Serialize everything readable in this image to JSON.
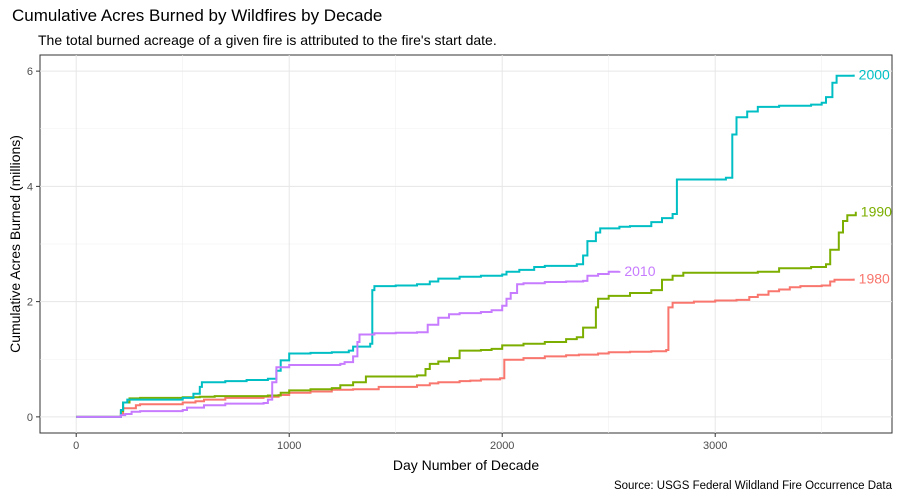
{
  "chart_data": {
    "type": "line",
    "title": "Cumulative Acres Burned by Wildfires by Decade",
    "subtitle": "The total burned acreage of a given fire is attributed to the fire's start date.",
    "caption": "Source: USGS Federal Wildland Fire Occurrence Data",
    "xlabel": "Day Number of Decade",
    "ylabel": "Cumulative Acres Burned (millions)",
    "xlim": [
      -170,
      3830
    ],
    "ylim": [
      -0.28,
      6.28
    ],
    "x_ticks": [
      0,
      1000,
      2000,
      3000
    ],
    "x_tick_labels": [
      "0",
      "1000",
      "2000",
      "3000"
    ],
    "y_ticks": [
      0,
      2,
      4,
      6
    ],
    "y_tick_labels": [
      "0",
      "2",
      "4",
      "6"
    ],
    "grid": true,
    "legend": "direct labels at line ends",
    "series": [
      {
        "name": "1980",
        "color": "#F8766D",
        "points": [
          [
            0,
            0
          ],
          [
            200,
            0
          ],
          [
            210,
            0.05
          ],
          [
            220,
            0.15
          ],
          [
            280,
            0.2
          ],
          [
            300,
            0.22
          ],
          [
            500,
            0.25
          ],
          [
            560,
            0.27
          ],
          [
            600,
            0.3
          ],
          [
            700,
            0.33
          ],
          [
            880,
            0.35
          ],
          [
            950,
            0.38
          ],
          [
            1000,
            0.42
          ],
          [
            1100,
            0.44
          ],
          [
            1200,
            0.47
          ],
          [
            1300,
            0.48
          ],
          [
            1420,
            0.52
          ],
          [
            1600,
            0.55
          ],
          [
            1660,
            0.58
          ],
          [
            1700,
            0.6
          ],
          [
            1800,
            0.62
          ],
          [
            1850,
            0.63
          ],
          [
            1900,
            0.65
          ],
          [
            1990,
            0.67
          ],
          [
            2010,
            0.99
          ],
          [
            2100,
            1.02
          ],
          [
            2200,
            1.05
          ],
          [
            2300,
            1.07
          ],
          [
            2360,
            1.08
          ],
          [
            2450,
            1.1
          ],
          [
            2500,
            1.12
          ],
          [
            2600,
            1.13
          ],
          [
            2700,
            1.14
          ],
          [
            2770,
            1.16
          ],
          [
            2780,
            1.9
          ],
          [
            2800,
            1.98
          ],
          [
            2900,
            2.0
          ],
          [
            3000,
            2.02
          ],
          [
            3100,
            2.03
          ],
          [
            3160,
            2.08
          ],
          [
            3200,
            2.12
          ],
          [
            3250,
            2.18
          ],
          [
            3300,
            2.21
          ],
          [
            3350,
            2.25
          ],
          [
            3400,
            2.27
          ],
          [
            3500,
            2.28
          ],
          [
            3540,
            2.35
          ],
          [
            3560,
            2.38
          ],
          [
            3650,
            2.4
          ]
        ]
      },
      {
        "name": "1990",
        "color": "#7CAE00",
        "points": [
          [
            0,
            0
          ],
          [
            200,
            0
          ],
          [
            210,
            0.1
          ],
          [
            220,
            0.25
          ],
          [
            250,
            0.32
          ],
          [
            300,
            0.33
          ],
          [
            500,
            0.34
          ],
          [
            580,
            0.35
          ],
          [
            650,
            0.36
          ],
          [
            900,
            0.37
          ],
          [
            960,
            0.42
          ],
          [
            1000,
            0.46
          ],
          [
            1100,
            0.48
          ],
          [
            1200,
            0.5
          ],
          [
            1240,
            0.55
          ],
          [
            1300,
            0.6
          ],
          [
            1360,
            0.7
          ],
          [
            1600,
            0.72
          ],
          [
            1640,
            0.83
          ],
          [
            1660,
            0.92
          ],
          [
            1700,
            0.96
          ],
          [
            1750,
            1.02
          ],
          [
            1800,
            1.15
          ],
          [
            1900,
            1.16
          ],
          [
            1950,
            1.18
          ],
          [
            2000,
            1.24
          ],
          [
            2100,
            1.27
          ],
          [
            2200,
            1.3
          ],
          [
            2300,
            1.35
          ],
          [
            2350,
            1.38
          ],
          [
            2380,
            1.55
          ],
          [
            2440,
            1.9
          ],
          [
            2450,
            2.05
          ],
          [
            2500,
            2.1
          ],
          [
            2600,
            2.15
          ],
          [
            2700,
            2.2
          ],
          [
            2750,
            2.38
          ],
          [
            2800,
            2.45
          ],
          [
            2850,
            2.5
          ],
          [
            3100,
            2.5
          ],
          [
            3200,
            2.52
          ],
          [
            3300,
            2.58
          ],
          [
            3450,
            2.6
          ],
          [
            3520,
            2.65
          ],
          [
            3540,
            2.9
          ],
          [
            3580,
            3.2
          ],
          [
            3600,
            3.4
          ],
          [
            3620,
            3.5
          ],
          [
            3660,
            3.56
          ]
        ]
      },
      {
        "name": "2000",
        "color": "#00BFC4",
        "points": [
          [
            0,
            0
          ],
          [
            200,
            0
          ],
          [
            210,
            0.12
          ],
          [
            220,
            0.25
          ],
          [
            240,
            0.3
          ],
          [
            500,
            0.33
          ],
          [
            550,
            0.4
          ],
          [
            580,
            0.52
          ],
          [
            590,
            0.6
          ],
          [
            700,
            0.62
          ],
          [
            800,
            0.64
          ],
          [
            900,
            0.66
          ],
          [
            940,
            0.8
          ],
          [
            960,
            0.98
          ],
          [
            1000,
            1.1
          ],
          [
            1100,
            1.11
          ],
          [
            1200,
            1.12
          ],
          [
            1280,
            1.15
          ],
          [
            1300,
            1.22
          ],
          [
            1380,
            1.27
          ],
          [
            1390,
            2.2
          ],
          [
            1400,
            2.27
          ],
          [
            1500,
            2.28
          ],
          [
            1600,
            2.3
          ],
          [
            1660,
            2.35
          ],
          [
            1700,
            2.4
          ],
          [
            1800,
            2.43
          ],
          [
            1900,
            2.45
          ],
          [
            2000,
            2.47
          ],
          [
            2020,
            2.52
          ],
          [
            2080,
            2.55
          ],
          [
            2150,
            2.6
          ],
          [
            2200,
            2.62
          ],
          [
            2350,
            2.65
          ],
          [
            2380,
            2.8
          ],
          [
            2400,
            3.05
          ],
          [
            2440,
            3.2
          ],
          [
            2460,
            3.27
          ],
          [
            2550,
            3.3
          ],
          [
            2600,
            3.31
          ],
          [
            2700,
            3.38
          ],
          [
            2750,
            3.45
          ],
          [
            2800,
            3.52
          ],
          [
            2820,
            4.12
          ],
          [
            3000,
            4.12
          ],
          [
            3050,
            4.15
          ],
          [
            3080,
            4.9
          ],
          [
            3100,
            5.2
          ],
          [
            3150,
            5.3
          ],
          [
            3200,
            5.38
          ],
          [
            3300,
            5.4
          ],
          [
            3450,
            5.42
          ],
          [
            3500,
            5.45
          ],
          [
            3520,
            5.55
          ],
          [
            3550,
            5.8
          ],
          [
            3570,
            5.92
          ],
          [
            3650,
            5.94
          ]
        ]
      },
      {
        "name": "2010",
        "color": "#C77CFF",
        "points": [
          [
            0,
            0
          ],
          [
            200,
            0
          ],
          [
            210,
            0.03
          ],
          [
            230,
            0.05
          ],
          [
            260,
            0.09
          ],
          [
            300,
            0.1
          ],
          [
            500,
            0.12
          ],
          [
            520,
            0.16
          ],
          [
            600,
            0.2
          ],
          [
            700,
            0.23
          ],
          [
            880,
            0.24
          ],
          [
            900,
            0.3
          ],
          [
            920,
            0.6
          ],
          [
            940,
            0.86
          ],
          [
            1000,
            0.9
          ],
          [
            1200,
            0.9
          ],
          [
            1240,
            0.92
          ],
          [
            1260,
            0.95
          ],
          [
            1300,
            1.05
          ],
          [
            1320,
            1.3
          ],
          [
            1330,
            1.43
          ],
          [
            1400,
            1.45
          ],
          [
            1500,
            1.46
          ],
          [
            1600,
            1.47
          ],
          [
            1650,
            1.6
          ],
          [
            1700,
            1.72
          ],
          [
            1750,
            1.78
          ],
          [
            1800,
            1.8
          ],
          [
            1900,
            1.82
          ],
          [
            1950,
            1.85
          ],
          [
            2000,
            1.93
          ],
          [
            2020,
            2.05
          ],
          [
            2040,
            2.15
          ],
          [
            2070,
            2.3
          ],
          [
            2100,
            2.32
          ],
          [
            2200,
            2.34
          ],
          [
            2300,
            2.35
          ],
          [
            2380,
            2.36
          ],
          [
            2400,
            2.45
          ],
          [
            2450,
            2.48
          ],
          [
            2500,
            2.52
          ],
          [
            2550,
            2.53
          ]
        ]
      }
    ]
  }
}
